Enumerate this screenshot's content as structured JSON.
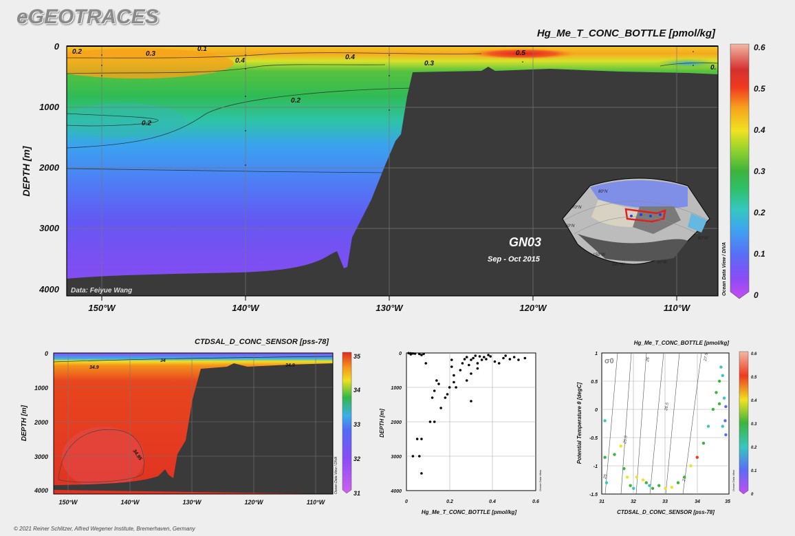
{
  "logo": "eGEOTRACES",
  "footer": "© 2021 Reiner Schlitzer, Alfred Wegener Institute, Bremerhaven, Germany",
  "colors": {
    "terrain": "#3a3a3a",
    "background": "#eeeeee"
  },
  "chart_data": [
    {
      "type": "heatmap",
      "title": "Hg_Me_T_CONC_BOTTLE [pmol/kg]",
      "ylabel": "DEPTH [m]",
      "xlabel": "",
      "xlim": [
        -152.5,
        -107.2
      ],
      "ylim": [
        0,
        4000
      ],
      "x_ticks": [
        "150°W",
        "140°W",
        "130°W",
        "120°W",
        "110°W"
      ],
      "y_ticks": [
        "0",
        "1000",
        "2000",
        "3000",
        "4000"
      ],
      "colorbar": {
        "min": 0,
        "max": 0.6,
        "ticks": [
          "0",
          "0.1",
          "0.2",
          "0.3",
          "0.4",
          "0.5",
          "0.6"
        ]
      },
      "contour_labels": [
        "0.2",
        "0.3",
        "0.1",
        "0.4",
        "0.4",
        "0.3",
        "0.5",
        "0.2",
        "0.2",
        "0."
      ],
      "annotations": {
        "section": "GN03",
        "dates": "Sep - Oct 2015",
        "credit": "Data: Feiyue Wang",
        "side": "Ocean Data View / DIVA"
      },
      "map": {
        "labels": [
          "80°N",
          "70°N",
          "60°N",
          "150°W",
          "120°W",
          "90°W",
          "60°W"
        ]
      }
    },
    {
      "type": "heatmap",
      "title": "CTDSAL_D_CONC_SENSOR [pss-78]",
      "ylabel": "DEPTH [m]",
      "xlim": [
        -152.5,
        -107.2
      ],
      "ylim": [
        0,
        4000
      ],
      "x_ticks": [
        "150°W",
        "140°W",
        "130°W",
        "120°W",
        "110°W"
      ],
      "y_ticks": [
        "0",
        "1000",
        "2000",
        "3000",
        "4000"
      ],
      "colorbar": {
        "min": 31,
        "max": 35,
        "ticks": [
          "31",
          "32",
          "33",
          "34",
          "35"
        ]
      },
      "contour_labels": [
        "34.9",
        "34",
        "34.9",
        "34.95"
      ],
      "side": "Ocean Data View / DIVA"
    },
    {
      "type": "scatter",
      "xlabel": "Hg_Me_T_CONC_BOTTLE [pmol/kg]",
      "ylabel": "DEPTH [m]",
      "xlim": [
        0,
        0.6
      ],
      "ylim": [
        0,
        4000
      ],
      "x_ticks": [
        "0",
        "0.2",
        "0.4",
        "0.6"
      ],
      "y_ticks": [
        "0",
        "1000",
        "2000",
        "3000",
        "4000"
      ],
      "side": "Ocean Data View",
      "points": [
        {
          "x": 0.01,
          "y": 5
        },
        {
          "x": 0.02,
          "y": 10
        },
        {
          "x": 0.03,
          "y": 15
        },
        {
          "x": 0.04,
          "y": 20
        },
        {
          "x": 0.06,
          "y": 30
        },
        {
          "x": 0.08,
          "y": 25
        },
        {
          "x": 0.02,
          "y": 40
        },
        {
          "x": 0.07,
          "y": 60
        },
        {
          "x": 0.09,
          "y": 300
        },
        {
          "x": 0.14,
          "y": 800
        },
        {
          "x": 0.15,
          "y": 900
        },
        {
          "x": 0.13,
          "y": 1100
        },
        {
          "x": 0.12,
          "y": 1300
        },
        {
          "x": 0.18,
          "y": 1300
        },
        {
          "x": 0.19,
          "y": 1200
        },
        {
          "x": 0.16,
          "y": 1600
        },
        {
          "x": 0.2,
          "y": 1000
        },
        {
          "x": 0.21,
          "y": 400
        },
        {
          "x": 0.21,
          "y": 200
        },
        {
          "x": 0.22,
          "y": 650
        },
        {
          "x": 0.22,
          "y": 850
        },
        {
          "x": 0.25,
          "y": 500
        },
        {
          "x": 0.26,
          "y": 300
        },
        {
          "x": 0.27,
          "y": 180
        },
        {
          "x": 0.28,
          "y": 120
        },
        {
          "x": 0.29,
          "y": 350
        },
        {
          "x": 0.3,
          "y": 200
        },
        {
          "x": 0.3,
          "y": 600
        },
        {
          "x": 0.31,
          "y": 150
        },
        {
          "x": 0.32,
          "y": 80
        },
        {
          "x": 0.33,
          "y": 300
        },
        {
          "x": 0.33,
          "y": 450
        },
        {
          "x": 0.34,
          "y": 100
        },
        {
          "x": 0.35,
          "y": 200
        },
        {
          "x": 0.36,
          "y": 120
        },
        {
          "x": 0.37,
          "y": 180
        },
        {
          "x": 0.38,
          "y": 60
        },
        {
          "x": 0.39,
          "y": 100
        },
        {
          "x": 0.41,
          "y": 250
        },
        {
          "x": 0.43,
          "y": 300
        },
        {
          "x": 0.45,
          "y": 150
        },
        {
          "x": 0.46,
          "y": 80
        },
        {
          "x": 0.48,
          "y": 180
        },
        {
          "x": 0.5,
          "y": 120
        },
        {
          "x": 0.52,
          "y": 200
        },
        {
          "x": 0.55,
          "y": 150
        },
        {
          "x": 0.3,
          "y": 1400
        },
        {
          "x": 0.23,
          "y": 1000
        },
        {
          "x": 0.28,
          "y": 800
        },
        {
          "x": 0.11,
          "y": 2000
        },
        {
          "x": 0.13,
          "y": 2000
        },
        {
          "x": 0.07,
          "y": 2500
        },
        {
          "x": 0.05,
          "y": 2500
        },
        {
          "x": 0.03,
          "y": 3000
        },
        {
          "x": 0.06,
          "y": 3000
        },
        {
          "x": 0.07,
          "y": 3500
        }
      ]
    },
    {
      "type": "scatter",
      "title": "Hg_Me_T_CONC_BOTTLE [pmol/kg]",
      "xlabel": "CTDSAL_D_CONC_SENSOR [pss-78]",
      "ylabel": "Potential Temperature θ [degC]",
      "xlim": [
        31,
        35
      ],
      "ylim": [
        -1.5,
        1
      ],
      "x_ticks": [
        "31",
        "32",
        "33",
        "34",
        "35"
      ],
      "y_ticks": [
        "1",
        "0.5",
        "0",
        "-0.5",
        "-1",
        "-1.5"
      ],
      "colorbar": {
        "min": 0,
        "max": 0.6,
        "ticks": [
          "0",
          "0.1",
          "0.2",
          "0.3",
          "0.4",
          "0.5",
          "0.6"
        ]
      },
      "sigma_label": "σ0",
      "isopycnal_labels": [
        "25",
        "25.5",
        "26",
        "26.5",
        "27",
        "27.5"
      ],
      "side": "Ocean Data View",
      "points": [
        {
          "x": 31.1,
          "y": -0.2,
          "c": 0.25
        },
        {
          "x": 31.1,
          "y": -0.85,
          "c": 0.3
        },
        {
          "x": 31.15,
          "y": -1.3,
          "c": 0.2
        },
        {
          "x": 31.4,
          "y": -0.8,
          "c": 0.3
        },
        {
          "x": 31.6,
          "y": -0.65,
          "c": 0.4
        },
        {
          "x": 31.7,
          "y": -1.05,
          "c": 0.3
        },
        {
          "x": 31.8,
          "y": -1.2,
          "c": 0.45
        },
        {
          "x": 31.9,
          "y": -1.35,
          "c": 0.3
        },
        {
          "x": 32.0,
          "y": -1.4,
          "c": 0.25
        },
        {
          "x": 32.1,
          "y": -1.2,
          "c": 0.45
        },
        {
          "x": 32.3,
          "y": -1.25,
          "c": 0.4
        },
        {
          "x": 32.4,
          "y": -1.3,
          "c": 0.3
        },
        {
          "x": 32.5,
          "y": -1.35,
          "c": 0.25
        },
        {
          "x": 32.6,
          "y": -1.4,
          "c": 0.35
        },
        {
          "x": 32.8,
          "y": -1.35,
          "c": 0.3
        },
        {
          "x": 33.0,
          "y": -1.4,
          "c": 0.45
        },
        {
          "x": 33.2,
          "y": -1.38,
          "c": 0.4
        },
        {
          "x": 33.4,
          "y": -1.3,
          "c": 0.3
        },
        {
          "x": 33.6,
          "y": -1.2,
          "c": 0.3
        },
        {
          "x": 33.8,
          "y": -1.0,
          "c": 0.45
        },
        {
          "x": 34.0,
          "y": -0.85,
          "c": 0.5
        },
        {
          "x": 34.2,
          "y": -0.6,
          "c": 0.3
        },
        {
          "x": 34.35,
          "y": -0.3,
          "c": 0.25
        },
        {
          "x": 34.5,
          "y": 0.0,
          "c": 0.3
        },
        {
          "x": 34.6,
          "y": 0.3,
          "c": 0.35
        },
        {
          "x": 34.7,
          "y": 0.5,
          "c": 0.3
        },
        {
          "x": 34.8,
          "y": 0.6,
          "c": 0.25
        },
        {
          "x": 34.85,
          "y": 0.2,
          "c": 0.2
        },
        {
          "x": 34.88,
          "y": -0.2,
          "c": 0.15
        },
        {
          "x": 34.9,
          "y": -0.45,
          "c": 0.1
        },
        {
          "x": 34.8,
          "y": -0.3,
          "c": 0.2
        },
        {
          "x": 34.9,
          "y": 0.05,
          "c": 0.1
        },
        {
          "x": 34.7,
          "y": 0.1,
          "c": 0.3
        },
        {
          "x": 34.75,
          "y": 0.75,
          "c": 0.2
        }
      ]
    }
  ]
}
